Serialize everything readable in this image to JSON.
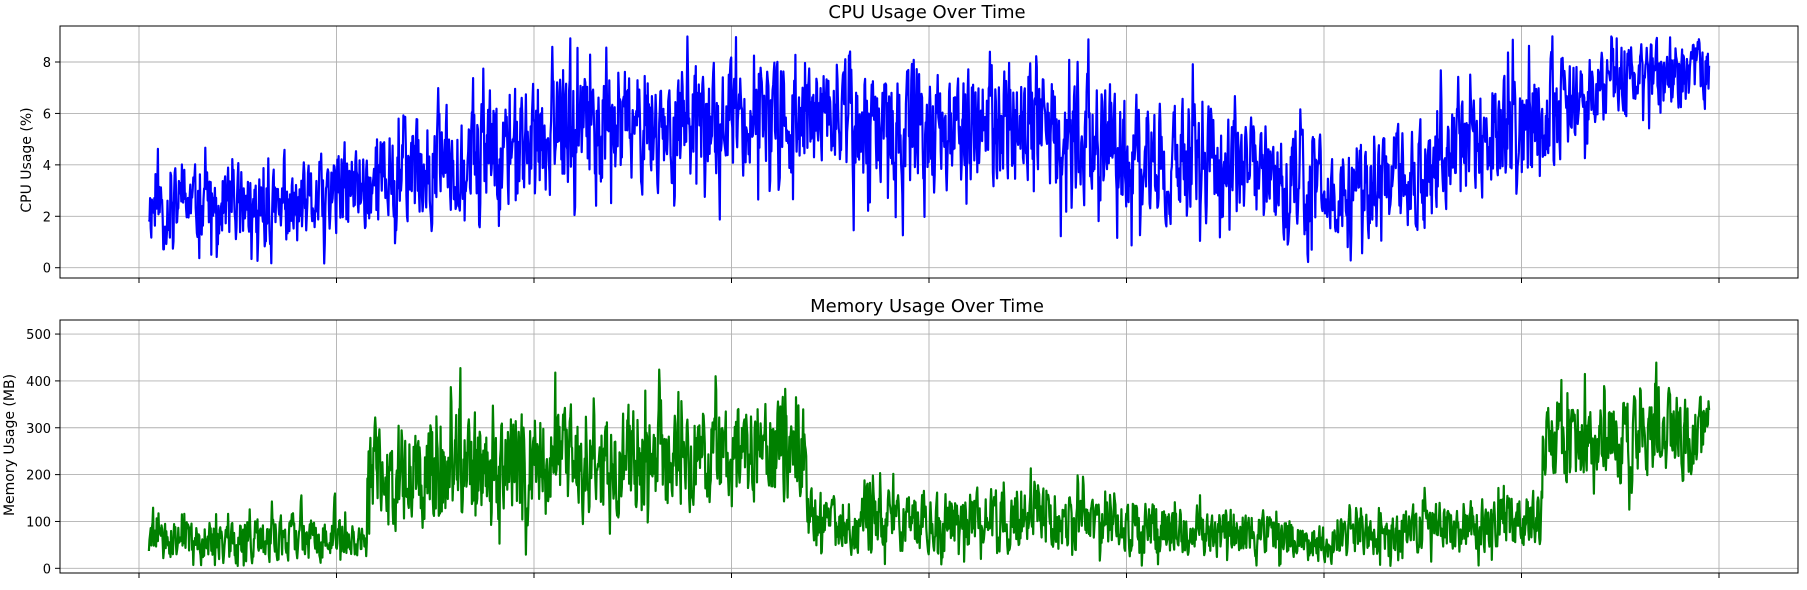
{
  "figure": {
    "background": "#ffffff",
    "grid": true
  },
  "chart_data": [
    {
      "type": "line",
      "title": "CPU Usage Over Time",
      "xlabel": "",
      "ylabel": "CPU Usage (%)",
      "ylim": [
        -0.4,
        9.4
      ],
      "yticks": [
        0,
        2,
        4,
        6,
        8
      ],
      "xlim": [
        -0.4,
        8.4
      ],
      "xticks": [
        0,
        1,
        2,
        3,
        4,
        5,
        6,
        7,
        8
      ],
      "xtick_labels_visible": false,
      "grid": true,
      "series": [
        {
          "color": "#0000ff",
          "x_range": [
            0.05,
            7.95
          ],
          "envelope": [
            {
              "x": 0.05,
              "center": 2.4,
              "amp": 1.8,
              "min": 0.3,
              "max": 5.5
            },
            {
              "x": 0.5,
              "center": 2.5,
              "amp": 2.0,
              "min": 0.4,
              "max": 6.2
            },
            {
              "x": 0.75,
              "center": 2.1,
              "amp": 1.9,
              "min": 0.0,
              "max": 6.5
            },
            {
              "x": 1.0,
              "center": 2.9,
              "amp": 2.3,
              "min": 0.2,
              "max": 6.3
            },
            {
              "x": 1.5,
              "center": 4.0,
              "amp": 2.6,
              "min": 1.4,
              "max": 8.5
            },
            {
              "x": 2.0,
              "center": 5.2,
              "amp": 3.0,
              "min": 1.5,
              "max": 9.0
            },
            {
              "x": 2.5,
              "center": 5.4,
              "amp": 3.0,
              "min": 1.4,
              "max": 9.0
            },
            {
              "x": 3.0,
              "center": 5.8,
              "amp": 2.8,
              "min": 1.4,
              "max": 9.0
            },
            {
              "x": 3.5,
              "center": 5.6,
              "amp": 3.0,
              "min": 1.0,
              "max": 9.0
            },
            {
              "x": 4.0,
              "center": 5.2,
              "amp": 3.0,
              "min": 0.5,
              "max": 9.0
            },
            {
              "x": 4.5,
              "center": 5.5,
              "amp": 3.0,
              "min": 1.5,
              "max": 9.0
            },
            {
              "x": 5.0,
              "center": 4.6,
              "amp": 3.0,
              "min": 0.0,
              "max": 9.0
            },
            {
              "x": 5.5,
              "center": 3.9,
              "amp": 2.8,
              "min": 0.8,
              "max": 8.5
            },
            {
              "x": 6.0,
              "center": 3.1,
              "amp": 2.4,
              "min": 0.1,
              "max": 8.0
            },
            {
              "x": 6.5,
              "center": 3.6,
              "amp": 2.6,
              "min": 0.4,
              "max": 7.5
            },
            {
              "x": 7.0,
              "center": 5.5,
              "amp": 3.0,
              "min": 0.3,
              "max": 9.0
            },
            {
              "x": 7.5,
              "center": 7.4,
              "amp": 1.8,
              "min": 2.0,
              "max": 9.0
            },
            {
              "x": 7.95,
              "center": 7.5,
              "amp": 1.6,
              "min": 3.5,
              "max": 9.0
            }
          ]
        }
      ]
    },
    {
      "type": "line",
      "title": "Memory Usage Over Time",
      "xlabel": "",
      "ylabel": "Memory Usage (MB)",
      "ylim": [
        -10,
        530
      ],
      "yticks": [
        0,
        100,
        200,
        300,
        400,
        500
      ],
      "xlim": [
        -0.4,
        8.4
      ],
      "xticks": [
        0,
        1,
        2,
        3,
        4,
        5,
        6,
        7,
        8
      ],
      "xtick_labels_visible": false,
      "grid": true,
      "series": [
        {
          "color": "#008000",
          "x_range": [
            0.05,
            7.95
          ],
          "envelope": [
            {
              "x": 0.05,
              "center": 55,
              "amp": 55,
              "min": 5,
              "max": 160
            },
            {
              "x": 0.5,
              "center": 60,
              "amp": 60,
              "min": 5,
              "max": 200
            },
            {
              "x": 0.75,
              "center": 65,
              "amp": 65,
              "min": 5,
              "max": 230
            },
            {
              "x": 1.0,
              "center": 65,
              "amp": 60,
              "min": 5,
              "max": 160
            },
            {
              "x": 1.15,
              "center": 65,
              "amp": 60,
              "min": 5,
              "max": 240
            },
            {
              "x": 1.16,
              "center": 200,
              "amp": 150,
              "min": 5,
              "max": 470
            },
            {
              "x": 1.5,
              "center": 210,
              "amp": 150,
              "min": 5,
              "max": 470
            },
            {
              "x": 2.0,
              "center": 220,
              "amp": 150,
              "min": 5,
              "max": 515
            },
            {
              "x": 2.5,
              "center": 225,
              "amp": 150,
              "min": 5,
              "max": 470
            },
            {
              "x": 3.0,
              "center": 235,
              "amp": 145,
              "min": 5,
              "max": 470
            },
            {
              "x": 3.38,
              "center": 240,
              "amp": 150,
              "min": 5,
              "max": 415
            },
            {
              "x": 3.39,
              "center": 100,
              "amp": 85,
              "min": 5,
              "max": 260
            },
            {
              "x": 4.0,
              "center": 100,
              "amp": 85,
              "min": 5,
              "max": 270
            },
            {
              "x": 4.5,
              "center": 105,
              "amp": 85,
              "min": 5,
              "max": 290
            },
            {
              "x": 5.0,
              "center": 85,
              "amp": 75,
              "min": 5,
              "max": 220
            },
            {
              "x": 5.5,
              "center": 75,
              "amp": 70,
              "min": 5,
              "max": 210
            },
            {
              "x": 6.0,
              "center": 55,
              "amp": 55,
              "min": 5,
              "max": 200
            },
            {
              "x": 6.5,
              "center": 85,
              "amp": 70,
              "min": 5,
              "max": 220
            },
            {
              "x": 7.1,
              "center": 100,
              "amp": 80,
              "min": 5,
              "max": 240
            },
            {
              "x": 7.11,
              "center": 275,
              "amp": 120,
              "min": 5,
              "max": 500
            },
            {
              "x": 7.5,
              "center": 280,
              "amp": 115,
              "min": 5,
              "max": 450
            },
            {
              "x": 7.95,
              "center": 285,
              "amp": 110,
              "min": 20,
              "max": 430
            }
          ]
        }
      ]
    }
  ]
}
